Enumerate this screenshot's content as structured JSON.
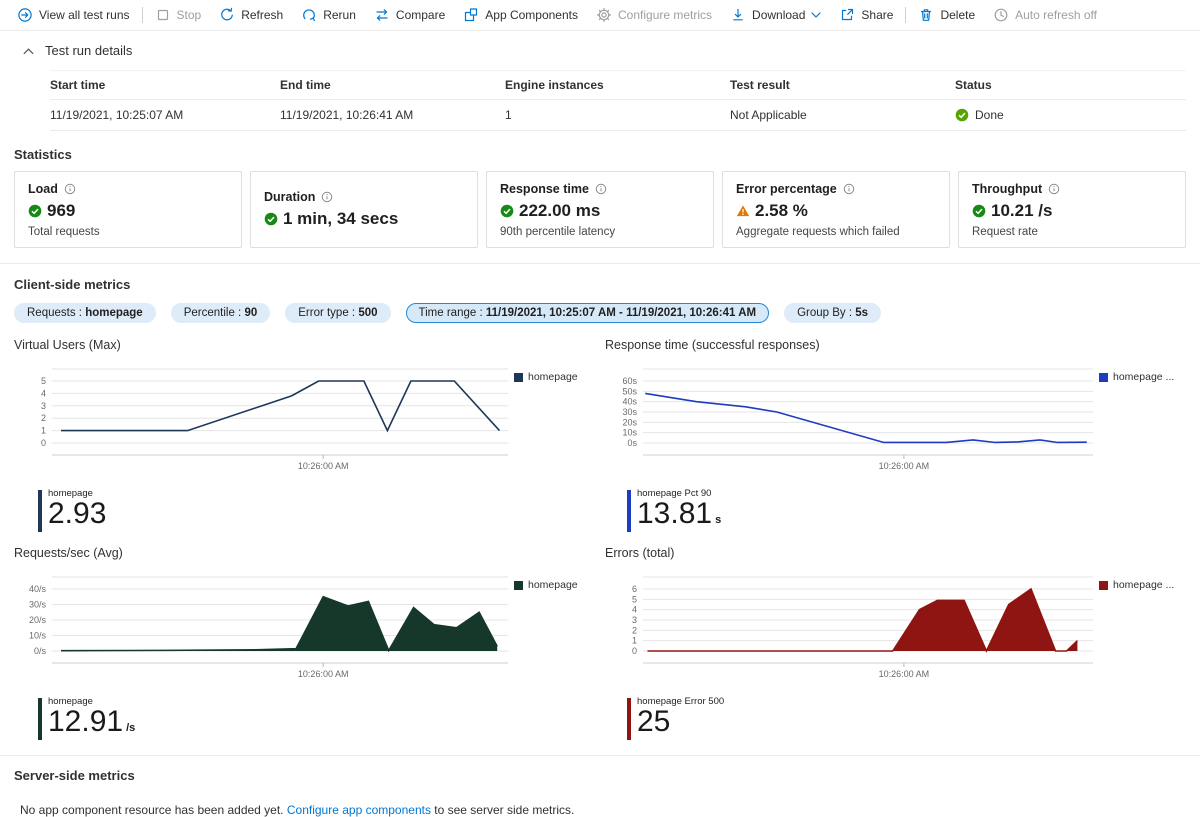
{
  "toolbar": {
    "items": [
      {
        "label": "View all test runs",
        "icon": "arrow-circle-right",
        "disabled": false
      },
      {
        "label": "Stop",
        "icon": "stop",
        "disabled": true
      },
      {
        "label": "Refresh",
        "icon": "refresh",
        "disabled": false
      },
      {
        "label": "Rerun",
        "icon": "rerun",
        "disabled": false
      },
      {
        "label": "Compare",
        "icon": "compare",
        "disabled": false
      },
      {
        "label": "App Components",
        "icon": "app-components",
        "disabled": false
      },
      {
        "label": "Configure metrics",
        "icon": "gear",
        "disabled": true
      },
      {
        "label": "Download",
        "icon": "download",
        "disabled": false
      },
      {
        "label": "Share",
        "icon": "share",
        "disabled": false
      },
      {
        "label": "Delete",
        "icon": "trash",
        "disabled": false
      },
      {
        "label": "Auto refresh off",
        "icon": "clock",
        "disabled": true
      }
    ]
  },
  "test_run_details": {
    "title": "Test run details",
    "columns": [
      "Start time",
      "End time",
      "Engine instances",
      "Test result",
      "Status"
    ],
    "row": {
      "start_time": "11/19/2021, 10:25:07 AM",
      "end_time": "11/19/2021, 10:26:41 AM",
      "engine_instances": "1",
      "test_result": "Not Applicable",
      "status": "Done"
    }
  },
  "statistics": {
    "heading": "Statistics",
    "cards": [
      {
        "title": "Load",
        "status": "success",
        "value": "969",
        "subtitle": "Total requests"
      },
      {
        "title": "Duration",
        "status": "success",
        "value": "1 min, 34 secs",
        "subtitle": ""
      },
      {
        "title": "Response time",
        "status": "success",
        "value": "222.00 ms",
        "subtitle": "90th percentile latency"
      },
      {
        "title": "Error percentage",
        "status": "warning",
        "value": "2.58 %",
        "subtitle": "Aggregate requests which failed"
      },
      {
        "title": "Throughput",
        "status": "success",
        "value": "10.21 /s",
        "subtitle": "Request rate"
      }
    ]
  },
  "client_side": {
    "heading": "Client-side metrics",
    "chips": [
      {
        "label": "Requests :",
        "value": "homepage",
        "selected": false
      },
      {
        "label": "Percentile :",
        "value": "90",
        "selected": false
      },
      {
        "label": "Error type :",
        "value": "500",
        "selected": false
      },
      {
        "label": "Time range :",
        "value": "11/19/2021, 10:25:07 AM - 11/19/2021, 10:26:41 AM",
        "selected": true
      },
      {
        "label": "Group By :",
        "value": "5s",
        "selected": false
      }
    ]
  },
  "server_side": {
    "heading": "Server-side metrics",
    "message_before": "No app component resource has been added yet. ",
    "link_text": "Configure app components",
    "message_after": " to see server side metrics."
  },
  "colors": {
    "accent": "#0078d4",
    "success_green": "#188918",
    "done_green": "#57a300",
    "warning_orange": "#dc7b06",
    "chip_bg": "#deecf9",
    "chip_selected_border": "#2488d8"
  },
  "chart_data": [
    {
      "type": "line",
      "title": "Virtual Users (Max)",
      "legend": "homepage",
      "color": "#1e3756",
      "ymax": 5,
      "yticks": [
        "5",
        "4",
        "3",
        "2",
        "1",
        "0"
      ],
      "xlabel": "10:26:00 AM",
      "xlabel_pos": 0.6,
      "points": [
        [
          0.02,
          1
        ],
        [
          0.3,
          1
        ],
        [
          0.53,
          3.8
        ],
        [
          0.59,
          5
        ],
        [
          0.69,
          5
        ],
        [
          0.742,
          1
        ],
        [
          0.794,
          5
        ],
        [
          0.89,
          5
        ],
        [
          0.99,
          1
        ]
      ],
      "metric": {
        "label": "homepage",
        "value": "2.93",
        "unit": ""
      }
    },
    {
      "type": "line",
      "title": "Response time (successful responses)",
      "legend": "homepage ...",
      "color": "#1d3bc3",
      "ymax": 60,
      "yticks": [
        "60s",
        "50s",
        "40s",
        "30s",
        "20s",
        "10s",
        "0s"
      ],
      "xlabel": "10:26:00 AM",
      "xlabel_pos": 0.585,
      "points": [
        [
          0.005,
          48
        ],
        [
          0.12,
          40
        ],
        [
          0.23,
          35
        ],
        [
          0.3,
          30
        ],
        [
          0.54,
          0.5
        ],
        [
          0.68,
          0.5
        ],
        [
          0.74,
          3
        ],
        [
          0.79,
          0.5
        ],
        [
          0.84,
          1
        ],
        [
          0.89,
          3
        ],
        [
          0.93,
          0.5
        ],
        [
          0.995,
          0.8
        ]
      ],
      "metric": {
        "label": "homepage Pct 90",
        "value": "13.81",
        "unit": "s"
      }
    },
    {
      "type": "area",
      "title": "Requests/sec (Avg)",
      "legend": "homepage",
      "color": "#16382b",
      "ymax": 40,
      "yticks": [
        "40/s",
        "30/s",
        "20/s",
        "10/s",
        "0/s"
      ],
      "xlabel": "10:26:00 AM",
      "xlabel_pos": 0.6,
      "points": [
        [
          0.02,
          0.2
        ],
        [
          0.25,
          0.4
        ],
        [
          0.45,
          0.8
        ],
        [
          0.54,
          1.5
        ],
        [
          0.6,
          35
        ],
        [
          0.655,
          29
        ],
        [
          0.7,
          32
        ],
        [
          0.745,
          0.3
        ],
        [
          0.8,
          28
        ],
        [
          0.845,
          17
        ],
        [
          0.895,
          15
        ],
        [
          0.945,
          25
        ],
        [
          0.985,
          3
        ]
      ],
      "metric": {
        "label": "homepage",
        "value": "12.91",
        "unit": "/s"
      }
    },
    {
      "type": "area",
      "title": "Errors (total)",
      "legend": "homepage ...",
      "color": "#8e1511",
      "ymax": 6,
      "yticks": [
        "6",
        "5",
        "4",
        "3",
        "2",
        "1",
        "0"
      ],
      "xlabel": "10:26:00 AM",
      "xlabel_pos": 0.585,
      "points": [
        [
          0.01,
          0
        ],
        [
          0.56,
          0
        ],
        [
          0.62,
          4
        ],
        [
          0.66,
          4.9
        ],
        [
          0.72,
          4.9
        ],
        [
          0.77,
          0
        ],
        [
          0.82,
          4.5
        ],
        [
          0.87,
          6
        ],
        [
          0.925,
          0
        ],
        [
          0.95,
          0
        ],
        [
          0.974,
          1
        ]
      ],
      "metric": {
        "label": "homepage Error 500",
        "value": "25",
        "unit": ""
      }
    }
  ]
}
